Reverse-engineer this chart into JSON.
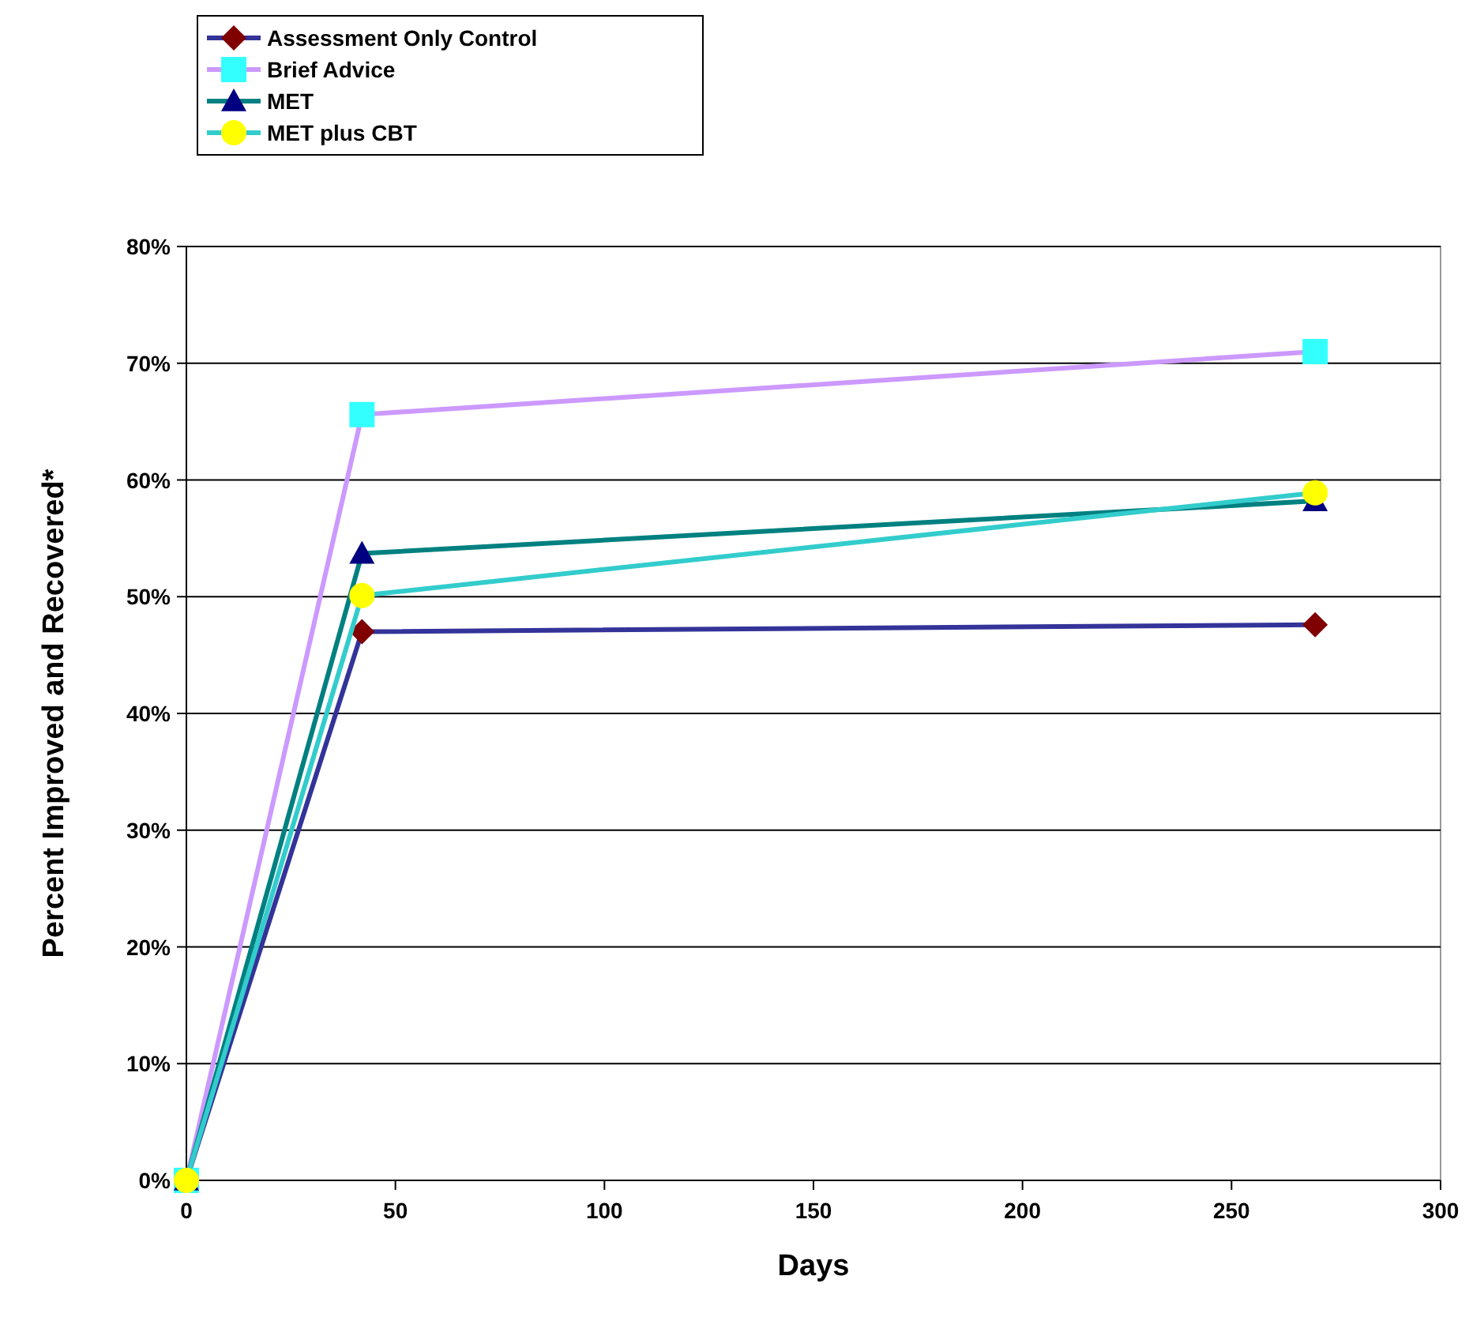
{
  "chart_data": {
    "type": "line",
    "xlabel": "Days",
    "ylabel": "Percent Improved and Recovered*",
    "x": [
      0,
      42,
      270
    ],
    "series": [
      {
        "name": "Assessment Only Control",
        "color": "#333399",
        "colors": [
          "#800000",
          "#800000",
          "#800000"
        ],
        "marker": "diamond",
        "values": [
          0,
          47,
          47.6
        ]
      },
      {
        "name": "Brief Advice",
        "color": "#cc99ff",
        "colors": [
          "#33ffff",
          "#33ffff",
          "#33ffff"
        ],
        "marker": "square",
        "values": [
          0,
          65.6,
          71
        ]
      },
      {
        "name": "MET",
        "color": "#008080",
        "colors": [
          "#000080",
          "#000080",
          "#000080"
        ],
        "marker": "triangle",
        "values": [
          0,
          53.7,
          58.2
        ]
      },
      {
        "name": "MET plus CBT",
        "color": "#33cccc",
        "colors": [
          "#ffff00",
          "#ffff00",
          "#ffff00"
        ],
        "marker": "circle",
        "values": [
          0,
          50.1,
          58.9
        ]
      }
    ],
    "xlim": [
      0,
      300
    ],
    "xticks": [
      0,
      50,
      100,
      150,
      200,
      250,
      300
    ],
    "ylim": [
      0,
      80
    ],
    "yticks": [
      {
        "value": 0,
        "label": "0%"
      },
      {
        "value": 10,
        "label": "10%"
      },
      {
        "value": 20,
        "label": "20%"
      },
      {
        "value": 30,
        "label": "30%"
      },
      {
        "value": 40,
        "label": "40%"
      },
      {
        "value": 50,
        "label": "50%"
      },
      {
        "value": 60,
        "label": "60%"
      },
      {
        "value": 70,
        "label": "70%"
      },
      {
        "value": 80,
        "label": "80%"
      }
    ],
    "grid": "y",
    "legend": "top left",
    "line_style": "solid"
  }
}
